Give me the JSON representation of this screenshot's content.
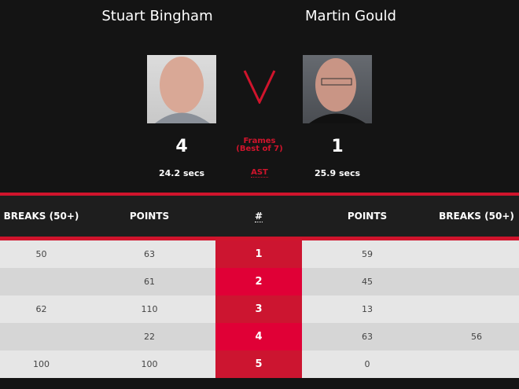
{
  "players": [
    {
      "name": "Stuart Bingham",
      "frames": "4",
      "avg_shot_time": "24.2 secs"
    },
    {
      "name": "Martin Gould",
      "frames": "1",
      "avg_shot_time": "25.9 secs"
    }
  ],
  "versus": "V",
  "frames_label": "Frames",
  "best_of_label": "(Best of 7)",
  "ast_label": "AST",
  "colors": {
    "accent": "#d0142c",
    "frame_odd": "#cc1530",
    "frame_even": "#e00036",
    "row_odd": "#e6e6e6",
    "row_even": "#d6d6d6"
  },
  "table": {
    "headers": [
      "BREAKS (50+)",
      "POINTS",
      "#",
      "POINTS",
      "BREAKS (50+)"
    ],
    "rows": [
      {
        "p1_breaks": "50",
        "p1_points": "63",
        "frame": "1",
        "p2_points": "59",
        "p2_breaks": ""
      },
      {
        "p1_breaks": "",
        "p1_points": "61",
        "frame": "2",
        "p2_points": "45",
        "p2_breaks": ""
      },
      {
        "p1_breaks": "62",
        "p1_points": "110",
        "frame": "3",
        "p2_points": "13",
        "p2_breaks": ""
      },
      {
        "p1_breaks": "",
        "p1_points": "22",
        "frame": "4",
        "p2_points": "63",
        "p2_breaks": "56"
      },
      {
        "p1_breaks": "100",
        "p1_points": "100",
        "frame": "5",
        "p2_points": "0",
        "p2_breaks": ""
      }
    ]
  }
}
